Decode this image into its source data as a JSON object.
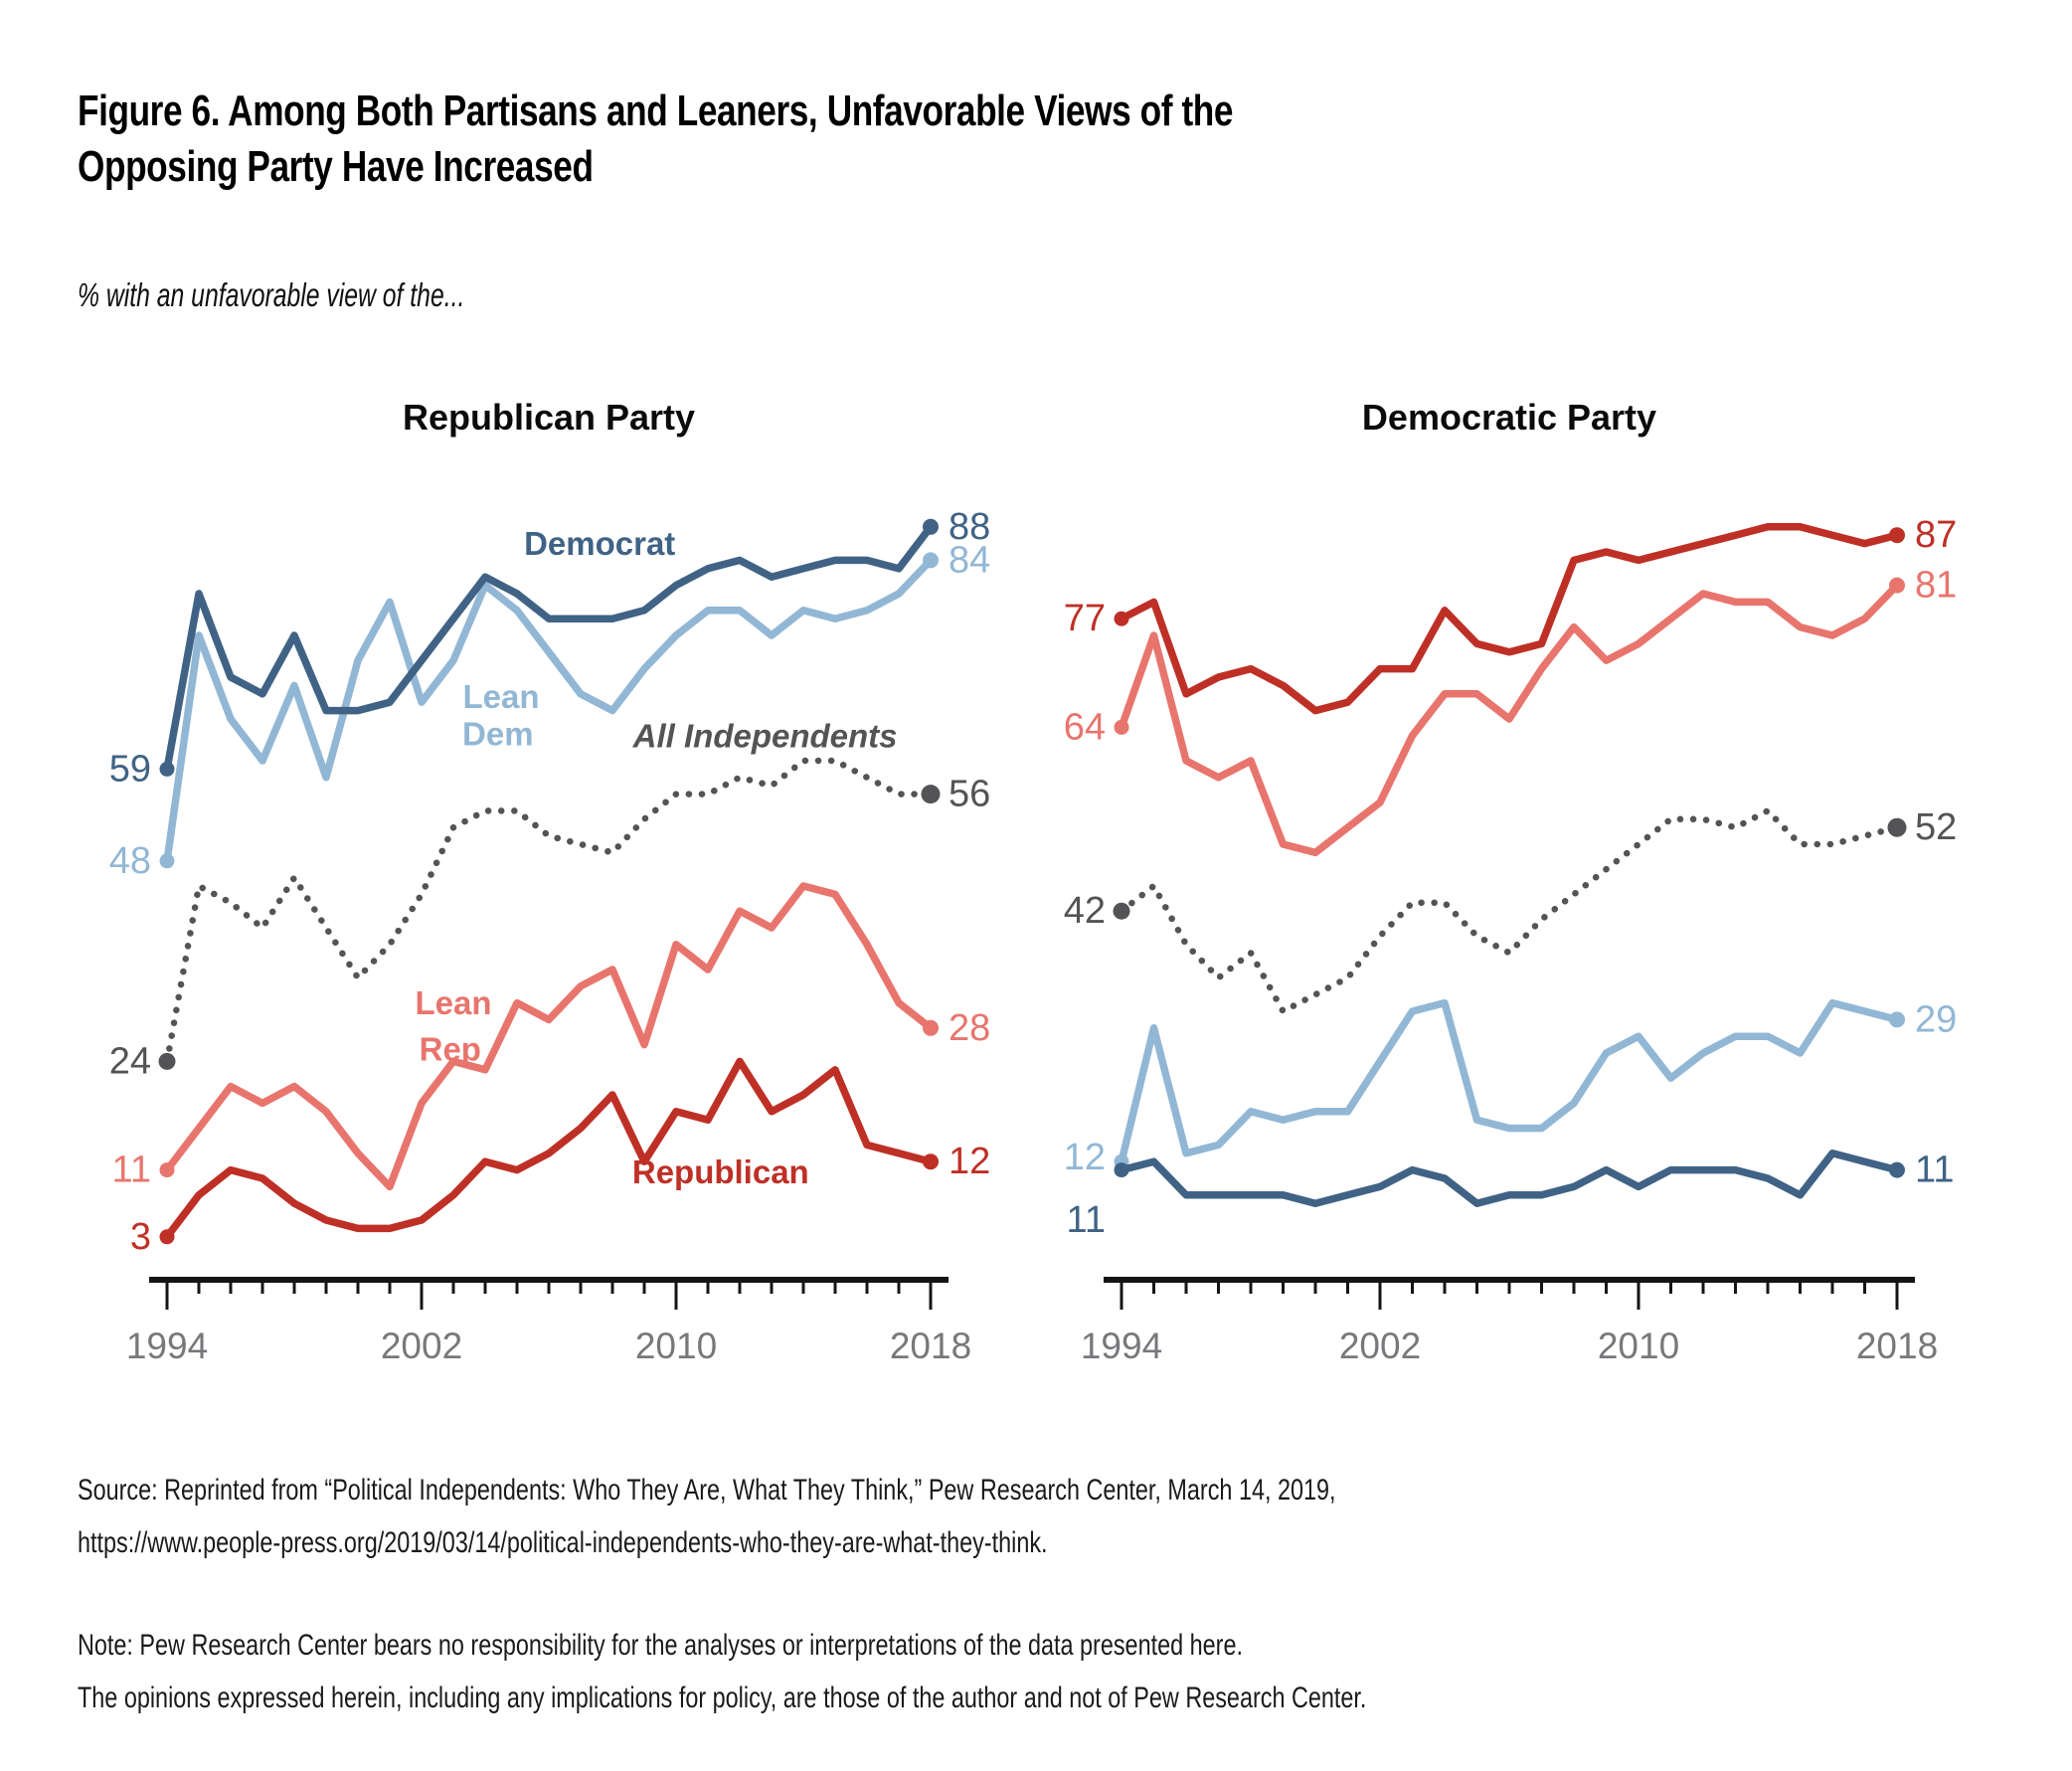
{
  "page": {
    "title_line1": "Figure 6. Among Both Partisans and Leaners, Unfavorable Views of the",
    "title_line2": "Opposing Party Have Increased",
    "subtitle": "% with an unfavorable view of the...",
    "source_line1": "Source: Reprinted from “Political Independents: Who They Are, What They Think,” Pew Research Center, March 14, 2019,",
    "source_line2": "https://www.people-press.org/2019/03/14/political-independents-who-they-are-what-they-think.",
    "note_line1": "Note: Pew Research Center bears no responsibility for the analyses or interpretations of the data presented here.",
    "note_line2": "The opinions expressed herein, including any implications for policy, are those of the author and not of Pew Research Center."
  },
  "colors": {
    "democrat": "#406385",
    "lean_dem": "#92B7D5",
    "republican": "#BE3026",
    "lean_rep": "#E8756D",
    "independent": "#545457",
    "axis": "#141414",
    "tick_label": "#77787B"
  },
  "chart_data": [
    {
      "type": "line",
      "title": "Republican Party",
      "xlabel": "",
      "ylabel": "% unfavorable",
      "ylim": [
        0,
        100
      ],
      "x": [
        1994,
        1995,
        1996,
        1997,
        1998,
        1999,
        2000,
        2001,
        2002,
        2003,
        2004,
        2005,
        2006,
        2007,
        2008,
        2009,
        2010,
        2011,
        2012,
        2013,
        2014,
        2015,
        2016,
        2017,
        2018
      ],
      "major_ticks": [
        1994,
        2002,
        2010,
        2018
      ],
      "series": [
        {
          "name": "All Independents",
          "key": "independent",
          "dotted": true,
          "values": [
            24,
            45,
            43,
            40,
            46,
            40,
            34,
            38,
            44,
            52,
            54,
            54,
            51,
            50,
            49,
            53,
            56,
            56,
            58,
            57,
            60,
            60,
            58,
            56,
            56
          ],
          "start_label": "24",
          "end_label": "56"
        },
        {
          "name": "Lean Dem",
          "key": "lean_dem",
          "values": [
            48,
            75,
            65,
            60,
            69,
            58,
            72,
            79,
            67,
            72,
            81,
            78,
            73,
            68,
            66,
            71,
            75,
            78,
            78,
            75,
            78,
            77,
            78,
            80,
            84
          ],
          "start_label": "48",
          "end_label": "84"
        },
        {
          "name": "Lean Rep",
          "key": "lean_rep",
          "values": [
            11,
            16,
            21,
            19,
            21,
            18,
            13,
            9,
            19,
            24,
            23,
            31,
            29,
            33,
            35,
            26,
            38,
            35,
            42,
            40,
            45,
            44,
            38,
            31,
            28
          ],
          "start_label": "11",
          "end_label": "28"
        },
        {
          "name": "Democrat",
          "key": "democrat",
          "values": [
            59,
            80,
            70,
            68,
            75,
            66,
            66,
            67,
            72,
            77,
            82,
            80,
            77,
            77,
            77,
            78,
            81,
            83,
            84,
            82,
            83,
            84,
            84,
            83,
            88
          ],
          "start_label": "59",
          "end_label": "88"
        },
        {
          "name": "Republican",
          "key": "republican",
          "values": [
            3,
            8,
            11,
            10,
            7,
            5,
            4,
            4,
            5,
            8,
            12,
            11,
            13,
            16,
            20,
            12,
            18,
            17,
            24,
            18,
            20,
            23,
            14,
            13,
            12
          ],
          "start_label": "3",
          "end_label": "12"
        }
      ],
      "annotations": [
        {
          "text": "Democrat",
          "year": 2007.6,
          "value": 86,
          "key": "democrat"
        },
        {
          "text": "Lean",
          "year": 2004.5,
          "value": 67.7,
          "key": "lean_dem"
        },
        {
          "text": "Dem",
          "year": 2004.4,
          "value": 63.2,
          "key": "lean_dem"
        },
        {
          "text": "All Independents",
          "year": 2012.8,
          "value": 63,
          "key": "independent",
          "italic": true
        },
        {
          "text": "Lean",
          "year": 2003.0,
          "value": 31.0,
          "key": "lean_rep"
        },
        {
          "text": "Rep",
          "year": 2002.9,
          "value": 25.5,
          "key": "lean_rep"
        },
        {
          "text": "Republican",
          "year": 2011.4,
          "value": 10.8,
          "key": "republican"
        }
      ]
    },
    {
      "type": "line",
      "title": "Democratic Party",
      "xlabel": "",
      "ylabel": "% unfavorable",
      "ylim": [
        0,
        100
      ],
      "x": [
        1994,
        1995,
        1996,
        1997,
        1998,
        1999,
        2000,
        2001,
        2002,
        2003,
        2004,
        2005,
        2006,
        2007,
        2008,
        2009,
        2010,
        2011,
        2012,
        2013,
        2014,
        2015,
        2016,
        2017,
        2018
      ],
      "major_ticks": [
        1994,
        2002,
        2010,
        2018
      ],
      "series": [
        {
          "name": "All Independents",
          "key": "independent",
          "dotted": true,
          "values": [
            42,
            45,
            38,
            34,
            37,
            30,
            32,
            34,
            39,
            43,
            43,
            39,
            37,
            41,
            44,
            47,
            50,
            53,
            53,
            52,
            54,
            50,
            50,
            51,
            52
          ],
          "start_label": "42",
          "end_label": "52"
        },
        {
          "name": "Lean Dem",
          "key": "lean_dem",
          "values": [
            12,
            28,
            13,
            14,
            18,
            17,
            18,
            18,
            24,
            30,
            31,
            17,
            16,
            16,
            19,
            25,
            27,
            22,
            25,
            27,
            27,
            25,
            31,
            30,
            29
          ],
          "start_label": "12",
          "end_label": "29",
          "start_dv": 0.5
        },
        {
          "name": "Lean Rep",
          "key": "lean_rep",
          "values": [
            64,
            75,
            60,
            58,
            60,
            50,
            49,
            52,
            55,
            63,
            68,
            68,
            65,
            71,
            76,
            72,
            74,
            77,
            80,
            79,
            79,
            76,
            75,
            77,
            81
          ],
          "start_label": "64",
          "end_label": "81"
        },
        {
          "name": "Democrat",
          "key": "democrat",
          "values": [
            11,
            12,
            8,
            8,
            8,
            8,
            7,
            8,
            9,
            11,
            10,
            7,
            8,
            8,
            9,
            11,
            9,
            11,
            11,
            11,
            10,
            8,
            13,
            12,
            11
          ],
          "start_label": "11",
          "end_label": "11",
          "start_dv": -6
        },
        {
          "name": "Republican",
          "key": "republican",
          "values": [
            77,
            79,
            68,
            70,
            71,
            69,
            66,
            67,
            71,
            71,
            78,
            74,
            73,
            74,
            84,
            85,
            84,
            85,
            86,
            87,
            88,
            88,
            87,
            86,
            87
          ],
          "start_label": "77",
          "end_label": "87"
        }
      ],
      "annotations": []
    }
  ]
}
